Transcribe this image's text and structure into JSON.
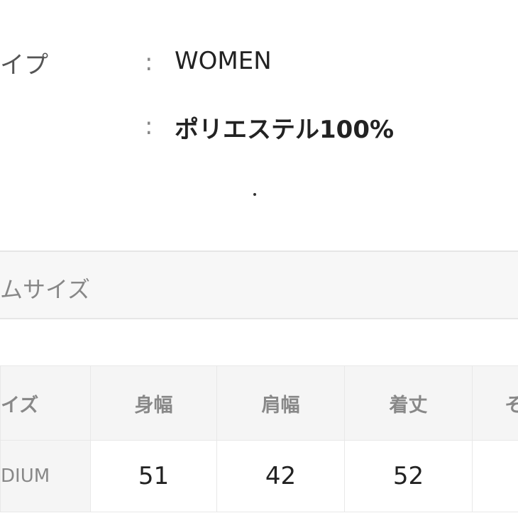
{
  "specs": [
    {
      "label": "イプ",
      "value": "WOMEN"
    },
    {
      "label": "",
      "value": "ポリエステル100%"
    }
  ],
  "section_title": "ムサイズ",
  "size_table": {
    "headers": [
      "イズ",
      "身幅",
      "肩幅",
      "着丈",
      "そ"
    ],
    "rows": [
      [
        "DIUM",
        "51",
        "42",
        "52",
        ""
      ]
    ]
  }
}
